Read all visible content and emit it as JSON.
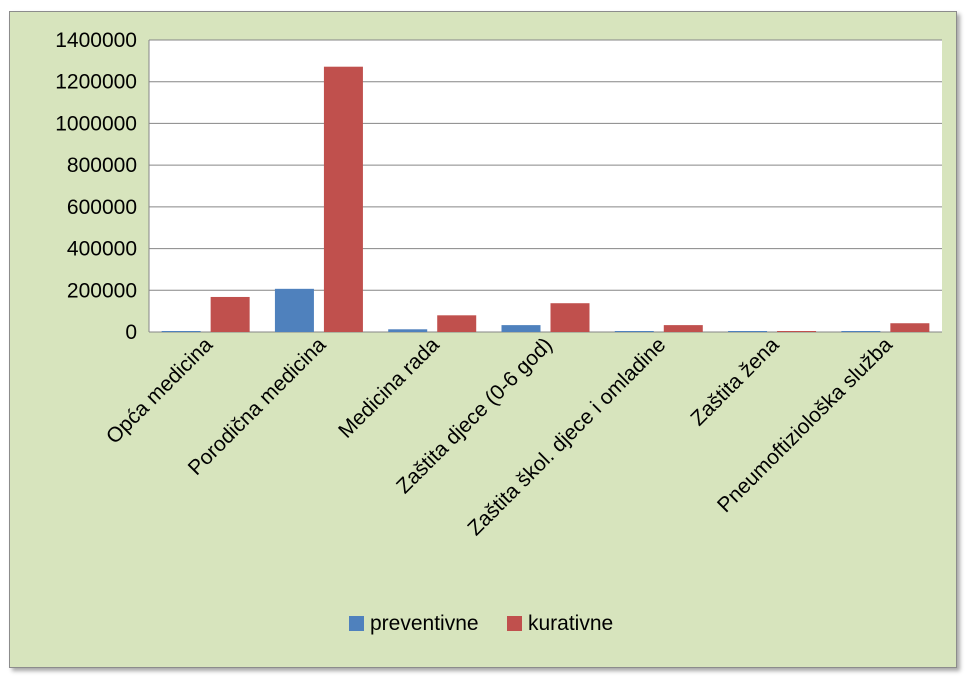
{
  "chart_data": {
    "type": "bar",
    "title": "",
    "xlabel": "",
    "ylabel": "",
    "ylim": [
      0,
      1400000
    ],
    "yticks": [
      0,
      200000,
      400000,
      600000,
      800000,
      1000000,
      1200000,
      1400000
    ],
    "ytick_labels": [
      "0",
      "200000",
      "400000",
      "600000",
      "800000",
      "1000000",
      "1200000",
      "1400000"
    ],
    "grid": true,
    "legend_position": "bottom",
    "categories": [
      "Opća medicina",
      "Porodična medicina",
      "Medicina rada",
      "Zaštita djece (0-6 god)",
      "Zaštita škol. djece i omladine",
      "Zaštita žena",
      "Pneumoftiziološka služba"
    ],
    "series": [
      {
        "name": "preventivne",
        "color": "#4f81bd",
        "values": [
          3000,
          207000,
          13000,
          33000,
          3000,
          1000,
          2000
        ]
      },
      {
        "name": "kurativne",
        "color": "#c0504d",
        "values": [
          168000,
          1272000,
          80000,
          138000,
          33000,
          1000,
          42000
        ]
      }
    ]
  },
  "colors": {
    "chart_background": "#d7e4bd",
    "plot_background": "#ffffff",
    "gridline": "#868686"
  }
}
